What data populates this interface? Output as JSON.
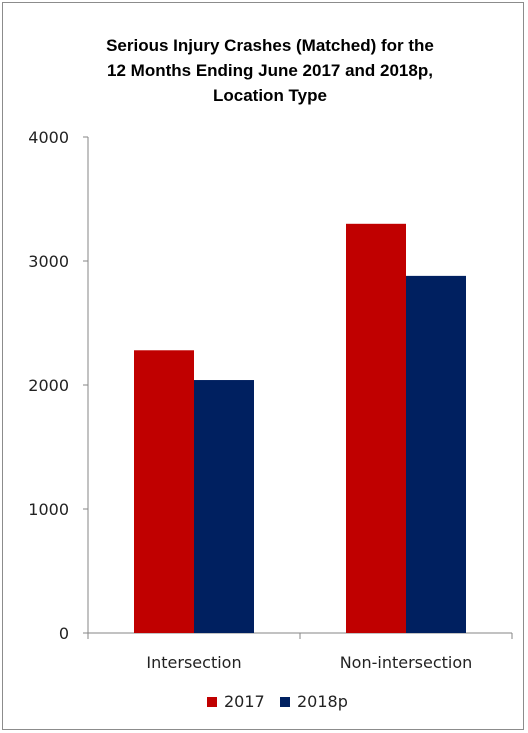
{
  "chart_data": {
    "type": "bar",
    "title_lines": [
      "Serious Injury Crashes (Matched) for the",
      "12 Months Ending June 2017 and 2018p,",
      "Location Type"
    ],
    "categories": [
      "Intersection",
      "Non-intersection"
    ],
    "series": [
      {
        "name": "2017",
        "values": [
          2280,
          3300
        ],
        "color": "#c00000"
      },
      {
        "name": "2018p",
        "values": [
          2040,
          2880
        ],
        "color": "#002060"
      }
    ],
    "xlabel": "",
    "ylabel": "",
    "ylim": [
      0,
      4000
    ],
    "yticks": [
      0,
      1000,
      2000,
      3000,
      4000
    ],
    "grid": false,
    "legend_position": "bottom"
  }
}
